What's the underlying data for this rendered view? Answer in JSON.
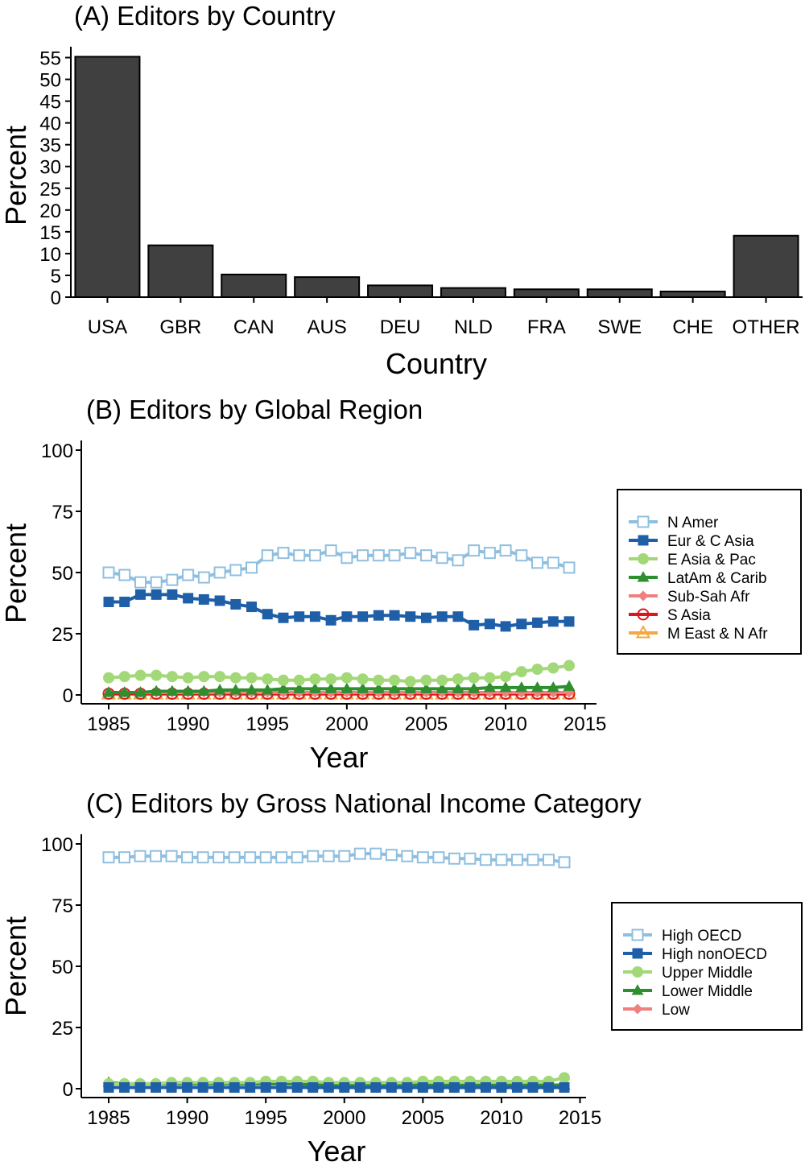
{
  "chart_data": [
    {
      "type": "bar",
      "title": "(A) Editors by Country",
      "xlabel": "Country",
      "ylabel": "Percent",
      "ylim": [
        0,
        57.5
      ],
      "yticks": [
        0,
        5,
        10,
        15,
        20,
        25,
        30,
        35,
        40,
        45,
        50,
        55
      ],
      "categories": [
        "USA",
        "GBR",
        "CAN",
        "AUS",
        "DEU",
        "NLD",
        "FRA",
        "SWE",
        "CHE",
        "OTHER"
      ],
      "values": [
        55.2,
        11.9,
        5.2,
        4.6,
        2.7,
        2.1,
        1.8,
        1.8,
        1.3,
        14.1
      ],
      "colors": {
        "bar": "#404040",
        "bar_edge": "#000000"
      }
    },
    {
      "type": "line",
      "title": "(B) Editors by Global Region",
      "xlabel": "Year",
      "ylabel": "Percent",
      "xlim": [
        1985,
        2014
      ],
      "ylim": [
        0,
        100
      ],
      "xticks": [
        1985,
        1990,
        1995,
        2000,
        2005,
        2010,
        2015
      ],
      "yticks": [
        0,
        25,
        50,
        75,
        100
      ],
      "legend_position": "right",
      "x": [
        1985,
        1986,
        1987,
        1988,
        1989,
        1990,
        1991,
        1992,
        1993,
        1994,
        1995,
        1996,
        1997,
        1998,
        1999,
        2000,
        2001,
        2002,
        2003,
        2004,
        2005,
        2006,
        2007,
        2008,
        2009,
        2010,
        2011,
        2012,
        2013,
        2014
      ],
      "series": [
        {
          "name": "N Amer",
          "color": "#8fbfe0",
          "marker": "square-open",
          "values": [
            50,
            49,
            46,
            46,
            47,
            49,
            48,
            50,
            51,
            52,
            57,
            58,
            57,
            57,
            59,
            56,
            57,
            57,
            57,
            58,
            57,
            56,
            55,
            59,
            58,
            59,
            57,
            54,
            54,
            52
          ]
        },
        {
          "name": "Eur & C Asia",
          "color": "#1f5fa8",
          "marker": "square",
          "values": [
            38,
            38,
            41,
            41,
            41,
            39.5,
            39,
            38.5,
            37,
            36,
            33,
            31.5,
            32,
            32,
            30.5,
            32,
            32,
            32.5,
            32.5,
            32,
            31.5,
            32,
            32,
            28.5,
            29,
            28,
            29,
            29.5,
            30,
            30
          ]
        },
        {
          "name": "E Asia & Pac",
          "color": "#a2d877",
          "marker": "circle",
          "values": [
            7,
            7.5,
            8,
            8,
            7.5,
            7,
            7.5,
            7.5,
            7,
            7,
            6.5,
            6,
            6,
            6.5,
            6.5,
            7,
            6.5,
            6,
            6,
            5.5,
            6,
            6,
            6.5,
            7,
            7,
            7.5,
            9.5,
            10.5,
            11,
            12
          ]
        },
        {
          "name": "LatAm & Carib",
          "color": "#2e8f2e",
          "marker": "triangle",
          "values": [
            1,
            1,
            1,
            1.5,
            1.5,
            1.5,
            1.5,
            2,
            2,
            2,
            2,
            2.5,
            2.5,
            2.5,
            2.5,
            2.5,
            2.5,
            2.5,
            2.5,
            2.5,
            2.5,
            2.5,
            2.5,
            2.5,
            3,
            3,
            3,
            3,
            3,
            3.5
          ]
        },
        {
          "name": "Sub-Sah Afr",
          "color": "#f08080",
          "marker": "diamond",
          "values": [
            1,
            1,
            1,
            1,
            1,
            1,
            1,
            1,
            1,
            1,
            1,
            1,
            1,
            1,
            1,
            1,
            1,
            1,
            1,
            1,
            1,
            1,
            1,
            1,
            1,
            1,
            1,
            1,
            1,
            1
          ]
        },
        {
          "name": "S Asia",
          "color": "#d7191c",
          "marker": "circle-open",
          "values": [
            0.5,
            0.5,
            0.5,
            0.5,
            0.5,
            0.5,
            0.5,
            0.5,
            0.5,
            0.5,
            0.5,
            0.5,
            0.5,
            0.5,
            0.5,
            0.5,
            0.5,
            0.5,
            0.5,
            0.5,
            0.5,
            0.5,
            0.5,
            0.5,
            0.5,
            0.5,
            0.5,
            0.5,
            0.5,
            0.5
          ]
        },
        {
          "name": "M East & N Afr",
          "color": "#f4a742",
          "marker": "triangle-open",
          "values": [
            0.3,
            0.3,
            0.3,
            0.3,
            0.3,
            0.3,
            0.3,
            0.3,
            0.3,
            0.3,
            0.3,
            0.3,
            0.3,
            0.3,
            0.3,
            0.3,
            0.3,
            0.3,
            0.3,
            0.3,
            0.3,
            0.3,
            0.3,
            0.3,
            0.3,
            0.3,
            0.3,
            0.3,
            0.3,
            0.3
          ]
        }
      ]
    },
    {
      "type": "line",
      "title": "(C) Editors by Gross National Income Category",
      "xlabel": "Year",
      "ylabel": "Percent",
      "xlim": [
        1985,
        2014
      ],
      "ylim": [
        0,
        100
      ],
      "xticks": [
        1985,
        1990,
        1995,
        2000,
        2005,
        2010,
        2015
      ],
      "yticks": [
        0,
        25,
        50,
        75,
        100
      ],
      "legend_position": "right",
      "x": [
        1985,
        1986,
        1987,
        1988,
        1989,
        1990,
        1991,
        1992,
        1993,
        1994,
        1995,
        1996,
        1997,
        1998,
        1999,
        2000,
        2001,
        2002,
        2003,
        2004,
        2005,
        2006,
        2007,
        2008,
        2009,
        2010,
        2011,
        2012,
        2013,
        2014
      ],
      "series": [
        {
          "name": "High OECD",
          "color": "#8fbfe0",
          "marker": "square-open",
          "values": [
            94.5,
            94.5,
            95,
            95,
            95,
            94.5,
            94.5,
            94.5,
            94.5,
            94.5,
            94.5,
            94.5,
            94.5,
            95,
            95,
            95,
            96,
            96,
            95.5,
            95,
            94.5,
            94.5,
            94,
            94,
            93.5,
            93.5,
            93.5,
            93.5,
            93.5,
            92.5
          ]
        },
        {
          "name": "High nonOECD",
          "color": "#1f5fa8",
          "marker": "square",
          "values": [
            0.5,
            0.5,
            0.5,
            0.5,
            0.5,
            0.5,
            0.5,
            0.5,
            0.5,
            0.5,
            0.5,
            0.5,
            0.5,
            0.5,
            0.5,
            0.5,
            0.5,
            0.5,
            0.5,
            0.5,
            0.5,
            0.5,
            0.5,
            0.5,
            0.5,
            0.5,
            0.5,
            0.5,
            0.5,
            0.5
          ]
        },
        {
          "name": "Upper Middle",
          "color": "#a2d877",
          "marker": "circle",
          "values": [
            2,
            2,
            2,
            2,
            2.5,
            2.5,
            2.5,
            2.5,
            2.5,
            2.5,
            3,
            3,
            3,
            3,
            2.5,
            2.5,
            2.5,
            2.5,
            2.5,
            2.5,
            3,
            3,
            3,
            3,
            3,
            3,
            3,
            3,
            3,
            4.5
          ]
        },
        {
          "name": "Lower Middle",
          "color": "#2e8f2e",
          "marker": "triangle",
          "values": [
            2.5,
            2,
            2,
            2,
            2,
            2,
            2,
            2,
            2,
            2,
            2,
            2,
            2,
            1.5,
            1.5,
            1.5,
            1.5,
            1.5,
            1.5,
            1.5,
            1.5,
            1.5,
            1.5,
            1.5,
            1.5,
            1.5,
            1.5,
            1.5,
            1.5,
            1.5
          ]
        },
        {
          "name": "Low",
          "color": "#f08080",
          "marker": "diamond",
          "values": [
            0.5,
            0.5,
            0.5,
            0.5,
            0.5,
            0.5,
            0.5,
            0.5,
            0.5,
            0.5,
            0.5,
            0.5,
            0.5,
            0.5,
            0.5,
            0.5,
            0.5,
            0.5,
            0.5,
            0.5,
            0.5,
            0.5,
            0.5,
            0.5,
            0.5,
            0.5,
            0.5,
            0.5,
            0.5,
            0.5
          ]
        }
      ]
    }
  ]
}
